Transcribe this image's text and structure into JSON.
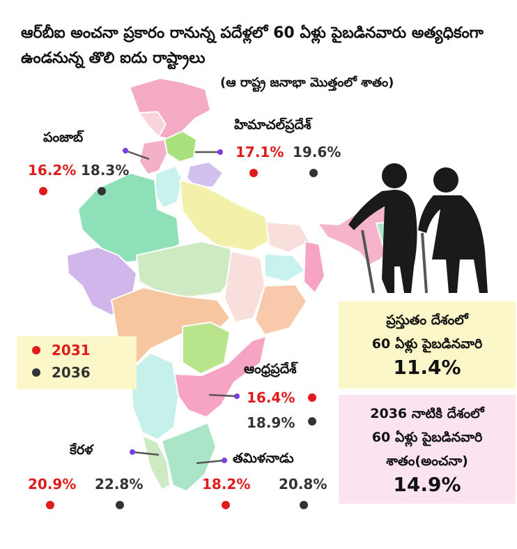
{
  "title": "ఆర్‌బీఐ అంచనా ప్రకారం రానున్న పదేళ్లలో 60 ఏళ్లు పైబడినవారు అత్యధికంగా ఉండనున్న తొలి ఐదు రాష్ట్రాలు",
  "subtitle": "(ఆ రాష్ట్ర జనాభా మొత్తంలో శాతం)",
  "colors": {
    "y2031": "#e01b1b",
    "y2036": "#333333",
    "legend_bg": "#fbf7c9",
    "box2_bg": "#fbe3f0",
    "pointer": "#7a3fe0"
  },
  "legend": {
    "y2031": "2031",
    "y2036": "2036"
  },
  "states": {
    "punjab": {
      "name": "పంజాబ్",
      "v2031": "16.2%",
      "v2036": "18.3%"
    },
    "himachal": {
      "name": "హిమాచల్‌ప్రదేశ్",
      "v2031": "17.1%",
      "v2036": "19.6%"
    },
    "andhra": {
      "name": "ఆంధ్రప్రదేశ్",
      "v2031": "16.4%",
      "v2036": "18.9%"
    },
    "kerala": {
      "name": "కేరళ",
      "v2031": "20.9%",
      "v2036": "22.8%"
    },
    "tamilnadu": {
      "name": "తమిళనాడు",
      "v2031": "18.2%",
      "v2036": "20.8%"
    }
  },
  "current_box": {
    "line1": "ప్రస్తుతం దేశంలో",
    "line2": "60 ఏళ్లు పైబడినవారి",
    "value": "11.4%"
  },
  "projection_box": {
    "line1": "2036 నాటికి దేశంలో",
    "line2": "60 ఏళ్లు పైబడినవారి",
    "line3": "శాతం(అంచనా)",
    "value": "14.9%"
  },
  "icons": [
    "india-map-icon",
    "elderly-couple-icon"
  ]
}
